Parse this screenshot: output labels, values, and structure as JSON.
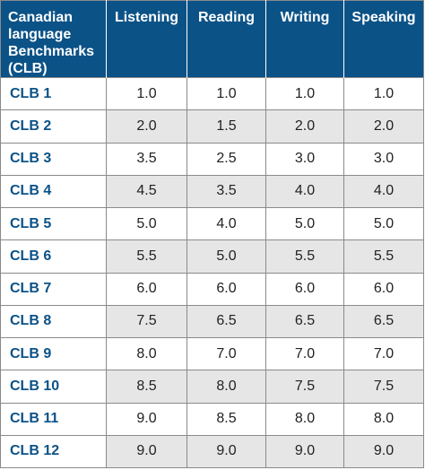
{
  "table": {
    "header": {
      "level_label": "Canadian language Benchmarks (CLB)",
      "skills": [
        "Listening",
        "Reading",
        "Writing",
        "Speaking"
      ]
    },
    "rows": [
      {
        "level": "CLB 1",
        "scores": [
          "1.0",
          "1.0",
          "1.0",
          "1.0"
        ]
      },
      {
        "level": "CLB 2",
        "scores": [
          "2.0",
          "1.5",
          "2.0",
          "2.0"
        ]
      },
      {
        "level": "CLB 3",
        "scores": [
          "3.5",
          "2.5",
          "3.0",
          "3.0"
        ]
      },
      {
        "level": "CLB 4",
        "scores": [
          "4.5",
          "3.5",
          "4.0",
          "4.0"
        ]
      },
      {
        "level": "CLB 5",
        "scores": [
          "5.0",
          "4.0",
          "5.0",
          "5.0"
        ]
      },
      {
        "level": "CLB 6",
        "scores": [
          "5.5",
          "5.0",
          "5.5",
          "5.5"
        ]
      },
      {
        "level": "CLB 7",
        "scores": [
          "6.0",
          "6.0",
          "6.0",
          "6.0"
        ]
      },
      {
        "level": "CLB 8",
        "scores": [
          "7.5",
          "6.5",
          "6.5",
          "6.5"
        ]
      },
      {
        "level": "CLB 9",
        "scores": [
          "8.0",
          "7.0",
          "7.0",
          "7.0"
        ]
      },
      {
        "level": "CLB 10",
        "scores": [
          "8.5",
          "8.0",
          "7.5",
          "7.5"
        ]
      },
      {
        "level": "CLB 11",
        "scores": [
          "9.0",
          "8.5",
          "8.0",
          "8.0"
        ]
      },
      {
        "level": "CLB 12",
        "scores": [
          "9.0",
          "9.0",
          "9.0",
          "9.0"
        ]
      }
    ]
  },
  "colors": {
    "header_bg": "#0b5287",
    "header_text": "#ffffff",
    "level_text": "#0b5287",
    "alt_row_bg": "#e6e6e6",
    "border": "#8a8a8a"
  }
}
